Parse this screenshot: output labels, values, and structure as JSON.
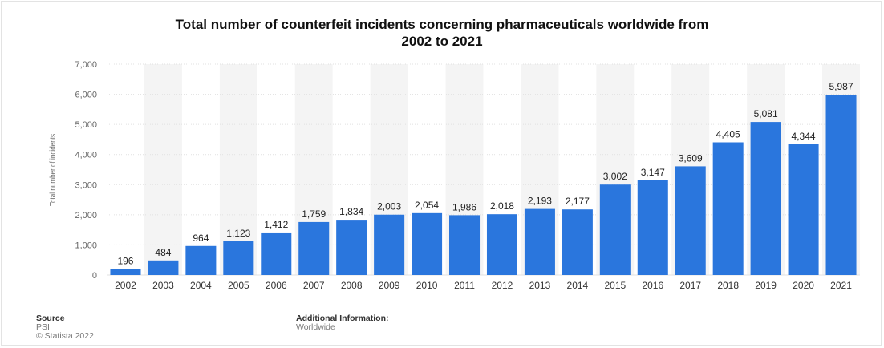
{
  "title_lines": [
    "Total number of counterfeit incidents concerning pharmaceuticals worldwide from",
    "2002 to 2021"
  ],
  "footer": {
    "source_heading": "Source",
    "source_name": "PSI",
    "copyright": "© Statista 2022",
    "additional_heading": "Additional Information:",
    "additional_value": "Worldwide"
  },
  "colors": {
    "bar": "#2a76dd",
    "band": "#f4f4f4",
    "grid": "#e1e1e1"
  },
  "chart_data": {
    "type": "bar",
    "title": "Total number of counterfeit incidents concerning pharmaceuticals worldwide from 2002 to 2021",
    "xlabel": "",
    "ylabel": "Total number of incidents",
    "ylim": [
      0,
      7000
    ],
    "yticks": [
      0,
      1000,
      2000,
      3000,
      4000,
      5000,
      6000,
      7000
    ],
    "ytick_labels": [
      "0",
      "1,000",
      "2,000",
      "3,000",
      "4,000",
      "5,000",
      "6,000",
      "7,000"
    ],
    "grid": true,
    "categories": [
      "2002",
      "2003",
      "2004",
      "2005",
      "2006",
      "2007",
      "2008",
      "2009",
      "2010",
      "2011",
      "2012",
      "2013",
      "2014",
      "2015",
      "2016",
      "2017",
      "2018",
      "2019",
      "2020",
      "2021"
    ],
    "values": [
      196,
      484,
      964,
      1123,
      1412,
      1759,
      1834,
      2003,
      2054,
      1986,
      2018,
      2193,
      2177,
      3002,
      3147,
      3609,
      4405,
      5081,
      4344,
      5987
    ],
    "value_labels": [
      "196",
      "484",
      "964",
      "1,123",
      "1,412",
      "1,759",
      "1,834",
      "2,003",
      "2,054",
      "1,986",
      "2,018",
      "2,193",
      "2,177",
      "3,002",
      "3,147",
      "3,609",
      "4,405",
      "5,081",
      "4,344",
      "5,987"
    ]
  }
}
